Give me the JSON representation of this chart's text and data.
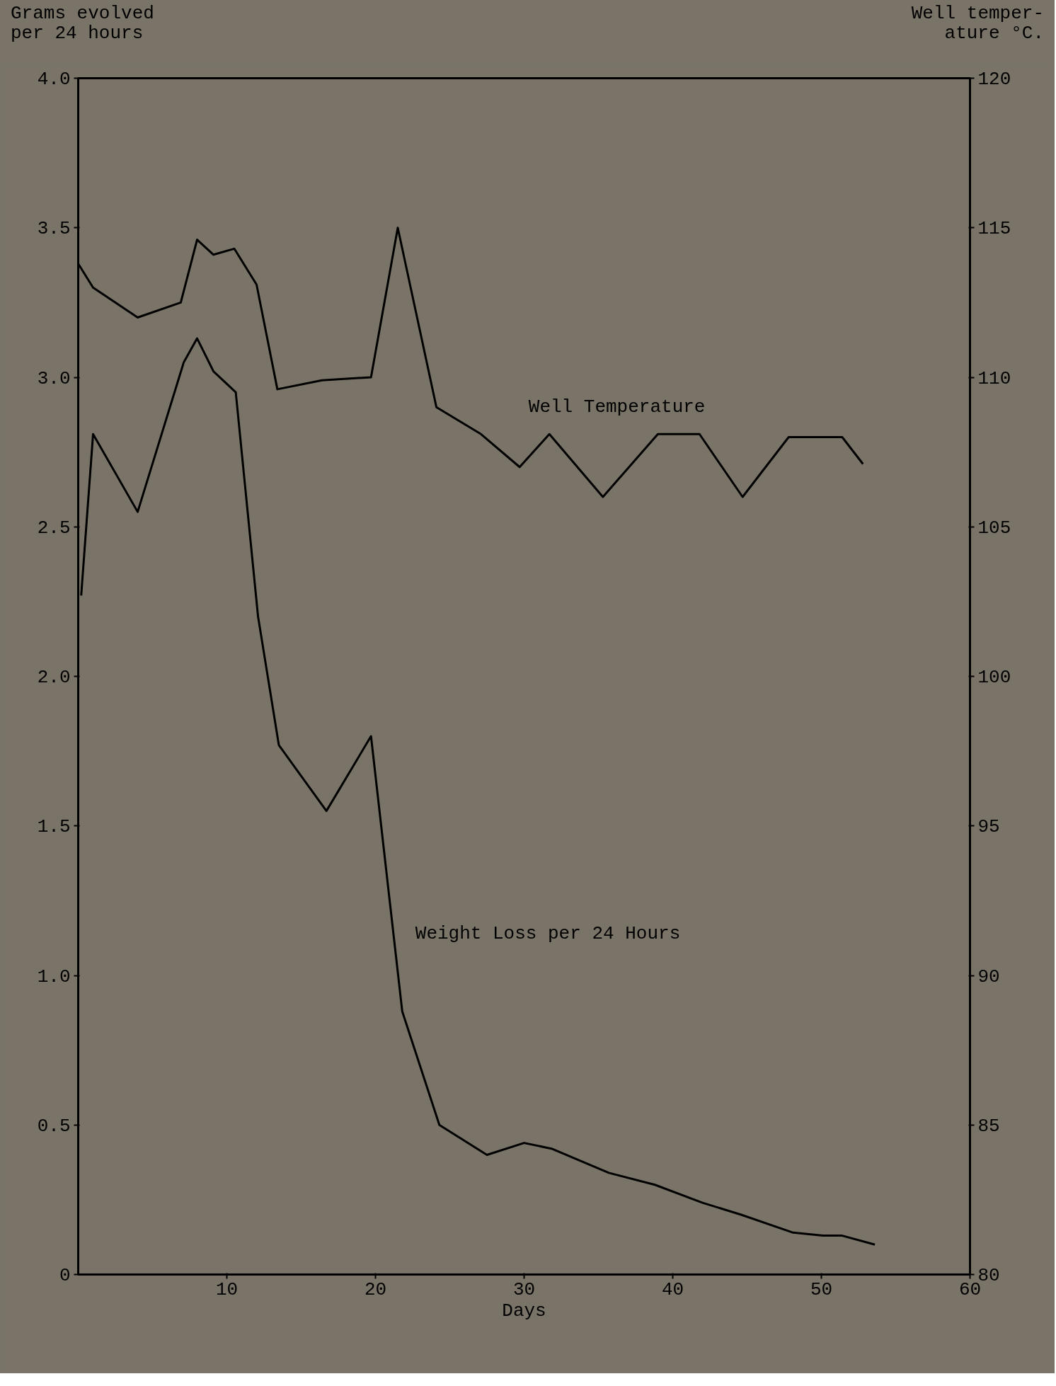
{
  "chart_data": {
    "type": "line",
    "xlabel": "Days",
    "ylabel": "Grams evolved\nper 24 hours",
    "y2label": "Well temper-\nature °C.",
    "xlim": [
      0,
      60
    ],
    "xticks": [
      10,
      20,
      30,
      40,
      50,
      60
    ],
    "ylim": [
      0,
      4
    ],
    "yticks": [
      0,
      {
        "value": 0.5,
        "label": "0.5"
      },
      {
        "value": 1,
        "label": "1.0"
      },
      {
        "value": 1.5,
        "label": "1.5"
      },
      {
        "value": 2,
        "label": "2.0"
      },
      {
        "value": 2.5,
        "label": "2.5"
      },
      {
        "value": 3,
        "label": "3.0"
      },
      {
        "value": 3.5,
        "label": "3.5"
      },
      {
        "value": 4,
        "label": "4.0"
      }
    ],
    "y2lim": [
      80,
      120
    ],
    "y2ticks": [
      80,
      85,
      90,
      95,
      100,
      105,
      110,
      115,
      120
    ],
    "grid": false,
    "marker": "none",
    "line_style": "solid",
    "series": [
      {
        "color": "#000000",
        "x": [
          0.2,
          1.0,
          4.0,
          7.1,
          8.0,
          9.1,
          10.6,
          12.1,
          13.5,
          16.7,
          19.7,
          21.8,
          24.3,
          27.5,
          30.0,
          31.9,
          35.7,
          38.8,
          42.0,
          44.6,
          48.1,
          50.1,
          51.4,
          53.6
        ],
        "values": [
          2.27,
          2.81,
          2.55,
          3.05,
          3.13,
          3.02,
          2.95,
          2.2,
          1.77,
          1.55,
          1.8,
          0.88,
          0.5,
          0.4,
          0.44,
          0.42,
          0.34,
          0.3,
          0.24,
          0.2,
          0.14,
          0.13,
          0.13,
          0.1
        ]
      },
      {
        "color": "#000000",
        "axis": "y2",
        "x": [
          0.0,
          1.0,
          4.0,
          6.9,
          8.0,
          9.1,
          10.5,
          12.0,
          13.4,
          16.4,
          19.7,
          21.5,
          24.1,
          27.1,
          29.7,
          31.7,
          35.3,
          39.0,
          41.8,
          44.7,
          47.8,
          51.4,
          52.8
        ],
        "values": [
          113.8,
          113.0,
          112.0,
          112.5,
          114.6,
          114.1,
          114.3,
          113.1,
          109.6,
          109.9,
          110.0,
          115.0,
          109.0,
          108.1,
          107.0,
          108.1,
          106.0,
          108.1,
          108.1,
          106.0,
          108.0,
          108.0,
          107.1
        ]
      }
    ],
    "annotations": [
      "Well Temperature",
      "Weight Loss per 24 Hours"
    ]
  }
}
